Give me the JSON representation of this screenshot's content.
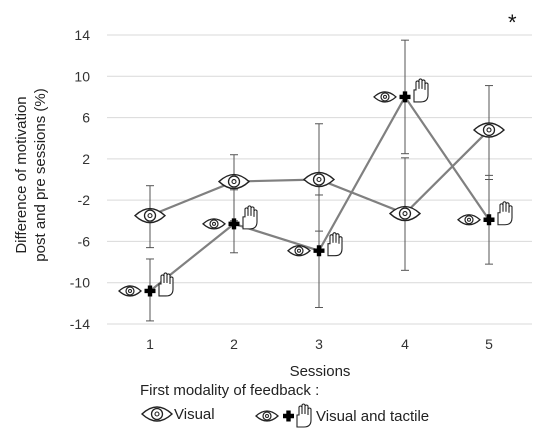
{
  "chart_data": {
    "type": "line",
    "xlabel": "Sessions",
    "ylabel_line1": "Difference of motivation",
    "ylabel_line2": "post and pre sessions (%)",
    "ylim": [
      -14,
      14
    ],
    "yticks": [
      14,
      10,
      6,
      2,
      -2,
      -6,
      -10,
      -14
    ],
    "ytick_labels": [
      "14",
      "10",
      "6",
      "2",
      "-2",
      "-6",
      "-10",
      "-14"
    ],
    "x": [
      1,
      2,
      3,
      4,
      5
    ],
    "x_labels": [
      "1",
      "2",
      "3",
      "4",
      "5"
    ],
    "grid": "horizontal",
    "annotation": "*",
    "legend_title": "First modality of feedback :",
    "line_color": "#808080",
    "series": [
      {
        "name": "Visual",
        "marker": "eye-icon",
        "values": [
          -3.5,
          -0.2,
          0.0,
          -3.3,
          4.8
        ],
        "err_low": [
          -6.6,
          -4.0,
          -5.0,
          -8.8,
          0.0
        ],
        "err_high": [
          -0.6,
          2.4,
          5.4,
          2.1,
          9.1
        ]
      },
      {
        "name": "Visual and tactile",
        "marker": "eye-cross-hand-icon",
        "values": [
          -10.8,
          -4.3,
          -6.9,
          8.0,
          -3.9
        ],
        "err_low": [
          -13.7,
          -7.1,
          -12.4,
          2.5,
          -8.2
        ],
        "err_high": [
          -7.7,
          -1.0,
          -1.5,
          13.5,
          0.4
        ]
      }
    ]
  }
}
